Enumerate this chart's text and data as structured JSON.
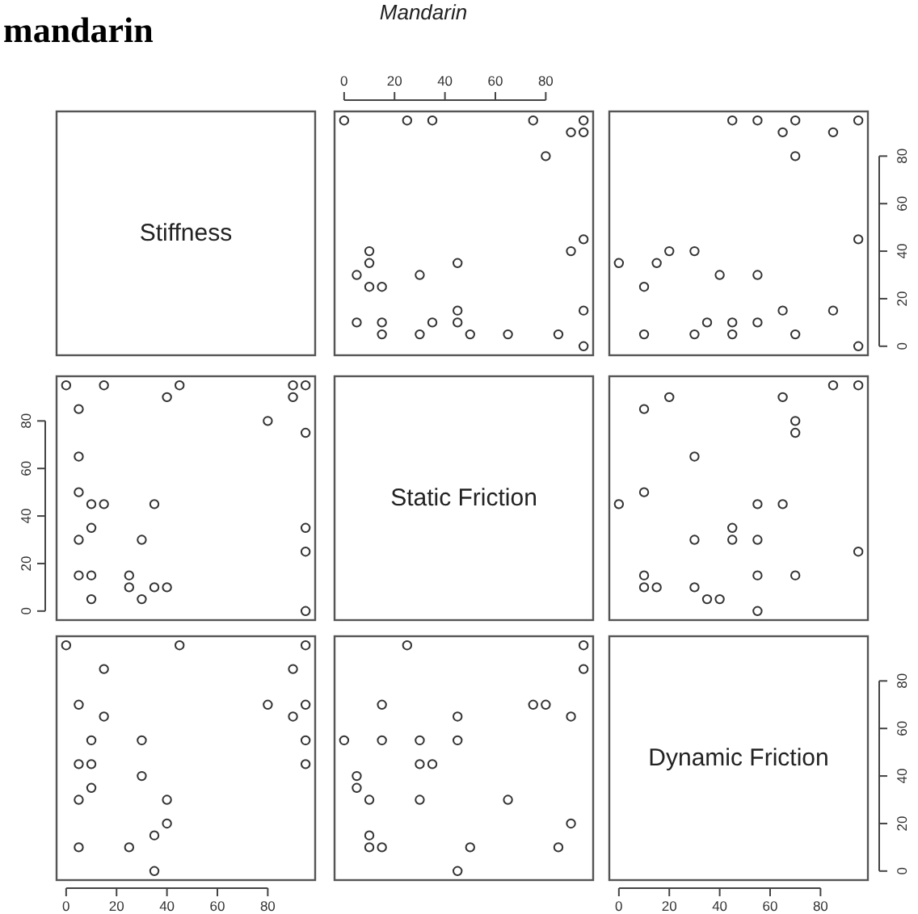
{
  "chart_data": [
    {
      "type": "other",
      "xlabel": "Stiffness",
      "annotations": [
        "mandarin"
      ]
    },
    {
      "type": "scatter",
      "title": "Mandarin",
      "xlim": [
        -3.8,
        98.8
      ],
      "ylim": [
        -3.8,
        98.8
      ],
      "xticks": [
        0,
        20,
        40,
        60,
        80
      ],
      "tick_labels": "x",
      "marker": "circle",
      "series": [
        {
          "color": "#333333",
          "x": [
            0,
            25,
            35,
            75,
            95,
            90,
            95,
            80,
            95,
            90,
            10,
            10,
            45,
            5,
            30,
            10,
            15,
            45,
            95,
            5,
            15,
            35,
            45,
            15,
            30,
            50,
            65,
            85,
            95
          ],
          "values": [
            95,
            95,
            95,
            95,
            95,
            90,
            90,
            80,
            45,
            40,
            40,
            35,
            35,
            30,
            30,
            25,
            25,
            15,
            15,
            10,
            10,
            10,
            10,
            5,
            5,
            5,
            5,
            5,
            0
          ]
        }
      ]
    },
    {
      "type": "scatter",
      "xlim": [
        -3.8,
        98.8
      ],
      "ylim": [
        -3.8,
        98.8
      ],
      "yticks": [
        0,
        20,
        40,
        60,
        80
      ],
      "tick_labels": "y",
      "marker": "circle",
      "series": [
        {
          "color": "#333333",
          "x": [
            45,
            55,
            70,
            95,
            65,
            85,
            70,
            95,
            20,
            30,
            0,
            15,
            40,
            55,
            10,
            65,
            85,
            35,
            45,
            55,
            10,
            30,
            45,
            70,
            95
          ],
          "values": [
            95,
            95,
            95,
            95,
            90,
            90,
            80,
            45,
            40,
            40,
            35,
            35,
            30,
            30,
            25,
            15,
            15,
            10,
            10,
            10,
            5,
            5,
            5,
            5,
            0
          ]
        }
      ]
    },
    {
      "type": "scatter",
      "xlim": [
        -3.8,
        98.8
      ],
      "ylim": [
        -3.8,
        98.8
      ],
      "yticks": [
        0,
        20,
        40,
        60,
        80
      ],
      "tick_labels": "y",
      "marker": "circle",
      "series": [
        {
          "color": "#333333",
          "x": [
            95,
            95,
            95,
            95,
            95,
            90,
            90,
            80,
            45,
            40,
            40,
            35,
            35,
            30,
            30,
            25,
            25,
            15,
            15,
            10,
            10,
            10,
            10,
            5,
            5,
            5,
            5,
            5,
            0
          ],
          "values": [
            0,
            25,
            35,
            75,
            95,
            90,
            95,
            80,
            95,
            90,
            10,
            10,
            45,
            5,
            30,
            10,
            15,
            45,
            95,
            5,
            15,
            35,
            45,
            15,
            30,
            50,
            65,
            85,
            95
          ]
        }
      ]
    },
    {
      "type": "other",
      "xlabel": "Static Friction"
    },
    {
      "type": "scatter",
      "xlim": [
        -3.8,
        98.8
      ],
      "ylim": [
        -3.8,
        98.8
      ],
      "tick_labels": false,
      "marker": "circle",
      "series": [
        {
          "color": "#333333",
          "x": [
            85,
            95,
            20,
            65,
            10,
            70,
            70,
            30,
            10,
            0,
            55,
            65,
            45,
            30,
            45,
            55,
            95,
            10,
            55,
            70,
            10,
            15,
            30,
            35,
            40,
            55
          ],
          "values": [
            95,
            95,
            90,
            90,
            85,
            80,
            75,
            65,
            50,
            45,
            45,
            45,
            35,
            30,
            30,
            30,
            25,
            15,
            15,
            15,
            10,
            10,
            10,
            5,
            5,
            0
          ]
        }
      ]
    },
    {
      "type": "scatter",
      "xlim": [
        -3.8,
        98.8
      ],
      "ylim": [
        -3.8,
        98.8
      ],
      "xticks": [
        0,
        20,
        40,
        60,
        80
      ],
      "tick_labels": "x",
      "marker": "circle",
      "series": [
        {
          "color": "#333333",
          "x": [
            95,
            95,
            95,
            95,
            90,
            90,
            80,
            45,
            40,
            40,
            35,
            35,
            30,
            30,
            25,
            15,
            15,
            10,
            10,
            10,
            5,
            5,
            5,
            5,
            0
          ],
          "values": [
            45,
            55,
            70,
            95,
            65,
            85,
            70,
            95,
            20,
            30,
            0,
            15,
            40,
            55,
            10,
            65,
            85,
            35,
            45,
            55,
            10,
            30,
            45,
            70,
            95
          ]
        }
      ]
    },
    {
      "type": "scatter",
      "xlim": [
        -3.8,
        98.8
      ],
      "ylim": [
        -3.8,
        98.8
      ],
      "tick_labels": false,
      "marker": "circle",
      "series": [
        {
          "color": "#333333",
          "x": [
            95,
            95,
            90,
            90,
            85,
            80,
            75,
            65,
            50,
            45,
            45,
            45,
            35,
            30,
            30,
            30,
            25,
            15,
            15,
            15,
            10,
            10,
            10,
            5,
            5,
            0
          ],
          "values": [
            85,
            95,
            20,
            65,
            10,
            70,
            70,
            30,
            10,
            0,
            55,
            65,
            45,
            30,
            45,
            55,
            95,
            10,
            55,
            70,
            10,
            15,
            30,
            35,
            40,
            55
          ]
        }
      ]
    },
    {
      "type": "scatter",
      "xlabel": "Dynamic Friction",
      "xlim": [
        -3.8,
        98.8
      ],
      "ylim": [
        -3.8,
        98.8
      ],
      "xticks": [
        0,
        20,
        40,
        60,
        80
      ],
      "yticks": [
        0,
        20,
        40,
        60,
        80
      ]
    }
  ]
}
